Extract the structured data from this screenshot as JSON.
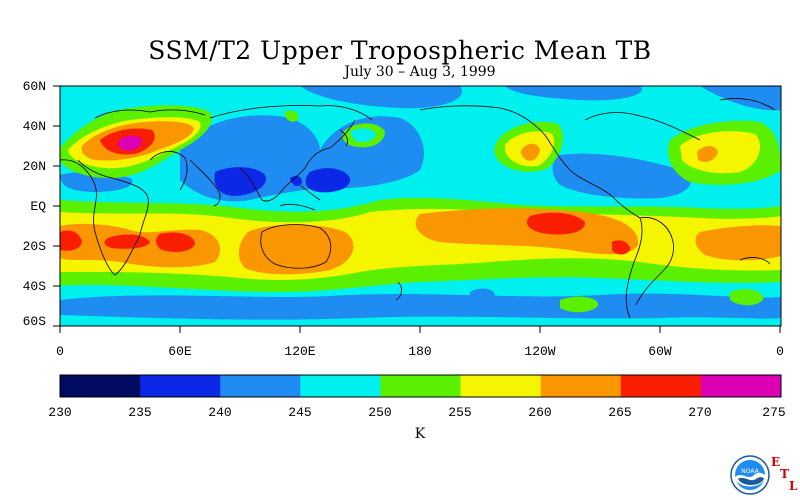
{
  "title": "SSM/T2 Upper Tropospheric Mean TB",
  "subtitle": "July 30 – Aug 3, 1999",
  "y_ticks": [
    "60N",
    "40N",
    "20N",
    "EQ",
    "20S",
    "40S",
    "60S"
  ],
  "x_ticks": [
    "0",
    "60E",
    "120E",
    "180",
    "120W",
    "60W",
    "0"
  ],
  "colorbar": {
    "ticks": [
      "230",
      "235",
      "240",
      "245",
      "250",
      "255",
      "260",
      "265",
      "270",
      "275"
    ],
    "colors": [
      "#000a5f",
      "#0a28e6",
      "#1e8cf0",
      "#00f0f0",
      "#5af000",
      "#f5f500",
      "#fa9600",
      "#fa1e00",
      "#dc00b4"
    ],
    "unit": "K"
  },
  "logo": {
    "org": "NOAA",
    "letters": [
      "E",
      "T",
      "L"
    ]
  }
}
